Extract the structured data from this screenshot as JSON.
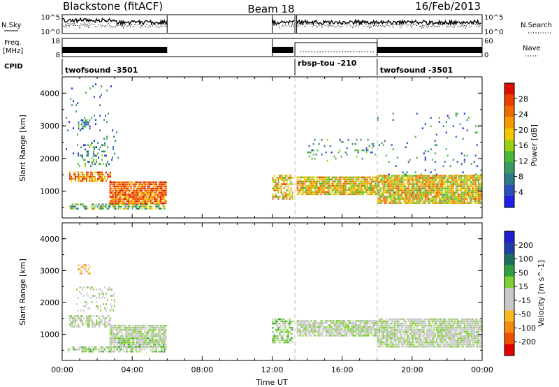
{
  "header": {
    "station": "Blackstone (fitACF)",
    "beam": "Beam 18",
    "date": "16/Feb/2013"
  },
  "left_labels": {
    "nsky": "N.Sky",
    "freq_line1": "Freq.",
    "freq_line2": "[MHz]",
    "cpid": "CPID",
    "nsky_ticks": [
      "10^5",
      "10^0"
    ],
    "freq_ticks": [
      "18",
      "8"
    ]
  },
  "right_labels": {
    "nsearch": "N.Search",
    "nave": "Nave",
    "nsearch_ticks": [
      "10^5",
      "10^0"
    ],
    "nave_ticks": [
      "60",
      "0"
    ]
  },
  "cpid_entries": [
    {
      "label": "twofsound -3501",
      "start": 0.0
    },
    {
      "label": "rbsp-tou -210",
      "start": 13.3
    },
    {
      "label": "twofsound -3501",
      "start": 18.0
    }
  ],
  "colors": {
    "power": [
      "#1f1fe6",
      "#2a4fb8",
      "#2f7a8e",
      "#3b9a62",
      "#4cb63a",
      "#9ad012",
      "#f4c800",
      "#f79a00",
      "#f06a00",
      "#e84000",
      "#dd1000"
    ],
    "velocity": [
      "#e00000",
      "#ef5000",
      "#f48a10",
      "#f7b820",
      "#c8c8c8",
      "#c8c8c8",
      "#7fd030",
      "#2fa040",
      "#1d6e5e",
      "#1f3fa8",
      "#1f1fd0"
    ]
  },
  "chart_data": [
    {
      "type": "heatmap",
      "name": "Power",
      "xlabel": "",
      "ylabel": "Slant Range [km]",
      "ylim": [
        180,
        4500
      ],
      "xlim": [
        0,
        24
      ],
      "yticks": [
        "1000",
        "2000",
        "3000",
        "4000"
      ],
      "colorbar_label": "Power [dB]",
      "colorbar_ticks": [
        "4",
        "8",
        "12",
        "16",
        "20",
        "24",
        "28"
      ],
      "colorbar_range": [
        0,
        30
      ],
      "regions": [
        {
          "t0": 0.4,
          "t1": 2.8,
          "r0": 1250,
          "r1": 1600,
          "v": 22,
          "density": 0.7
        },
        {
          "t0": 0.3,
          "t1": 6.0,
          "r0": 420,
          "r1": 620,
          "v": 12,
          "density": 0.6
        },
        {
          "t0": 2.7,
          "t1": 6.0,
          "r0": 600,
          "r1": 1300,
          "v": 24,
          "density": 0.9
        },
        {
          "t0": 0.8,
          "t1": 3.0,
          "r0": 1700,
          "r1": 2500,
          "v": 9,
          "density": 0.2
        },
        {
          "t0": 0.9,
          "t1": 1.6,
          "r0": 2850,
          "r1": 3200,
          "v": 7,
          "density": 0.5
        },
        {
          "t0": 0.2,
          "t1": 3.2,
          "r0": 2000,
          "r1": 4300,
          "v": 6,
          "density": 0.04
        },
        {
          "t0": 12.0,
          "t1": 13.2,
          "r0": 700,
          "r1": 1500,
          "v": 18,
          "density": 0.6
        },
        {
          "t0": 13.4,
          "t1": 18.0,
          "r0": 900,
          "r1": 1450,
          "v": 18,
          "density": 0.85
        },
        {
          "t0": 14.0,
          "t1": 18.0,
          "r0": 1900,
          "r1": 2600,
          "v": 8,
          "density": 0.08
        },
        {
          "t0": 18.0,
          "t1": 24.0,
          "r0": 600,
          "r1": 1500,
          "v": 18,
          "density": 0.9
        },
        {
          "t0": 18.0,
          "t1": 24.0,
          "r0": 1500,
          "r1": 3400,
          "v": 6,
          "density": 0.03
        }
      ]
    },
    {
      "type": "heatmap",
      "name": "Velocity",
      "xlabel": "Time UT",
      "ylabel": "Slant Range [km]",
      "ylim": [
        180,
        4500
      ],
      "xlim": [
        0,
        24
      ],
      "xticks": [
        "00:00",
        "04:00",
        "08:00",
        "12:00",
        "16:00",
        "20:00",
        "00:00"
      ],
      "yticks": [
        "1000",
        "2000",
        "3000",
        "4000"
      ],
      "colorbar_label": "Velocity [m s^-1]",
      "colorbar_ticks": [
        "200",
        "100",
        "50",
        "15",
        "-15",
        "-50",
        "-100",
        "-200"
      ],
      "colorbar_range": [
        -250,
        250
      ],
      "regions": [
        {
          "t0": 0.4,
          "t1": 2.8,
          "r0": 1200,
          "r1": 1600,
          "v": 0,
          "density": 0.6
        },
        {
          "t0": 0.3,
          "t1": 6.0,
          "r0": 420,
          "r1": 620,
          "v": 30,
          "density": 0.5
        },
        {
          "t0": 2.7,
          "t1": 6.0,
          "r0": 600,
          "r1": 1300,
          "v": 0,
          "density": 0.85
        },
        {
          "t0": 3.2,
          "t1": 5.8,
          "r0": 600,
          "r1": 900,
          "v": 40,
          "density": 0.4
        },
        {
          "t0": 0.8,
          "t1": 3.0,
          "r0": 1700,
          "r1": 2500,
          "v": 0,
          "density": 0.2
        },
        {
          "t0": 0.9,
          "t1": 1.6,
          "r0": 2850,
          "r1": 3200,
          "v": -80,
          "density": 0.5
        },
        {
          "t0": 12.0,
          "t1": 13.2,
          "r0": 700,
          "r1": 1500,
          "v": 40,
          "density": 0.6
        },
        {
          "t0": 13.4,
          "t1": 18.0,
          "r0": 900,
          "r1": 1450,
          "v": 0,
          "density": 0.85
        },
        {
          "t0": 18.0,
          "t1": 24.0,
          "r0": 600,
          "r1": 1500,
          "v": 0,
          "density": 0.85
        }
      ]
    }
  ]
}
